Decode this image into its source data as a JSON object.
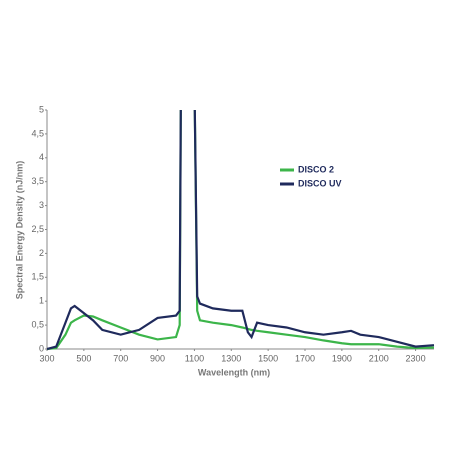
{
  "chart_data": {
    "type": "line",
    "y_label": "Spectral Energy Density (nJ/nm)",
    "x_label": "Wavelength (nm)",
    "x": [
      300,
      350,
      400,
      430,
      450,
      500,
      550,
      600,
      700,
      800,
      900,
      1000,
      1020,
      1026,
      1060,
      1102,
      1115,
      1130,
      1200,
      1300,
      1360,
      1390,
      1410,
      1440,
      1500,
      1600,
      1700,
      1800,
      1900,
      1950,
      2000,
      2100,
      2200,
      2300,
      2400
    ],
    "series": [
      {
        "name": "DISCO 2",
        "color": "#3cb54a",
        "values": [
          0,
          0.02,
          0.3,
          0.55,
          0.6,
          0.7,
          0.68,
          0.6,
          0.45,
          0.3,
          0.2,
          0.25,
          0.5,
          5,
          null,
          5,
          0.8,
          0.6,
          0.55,
          0.5,
          0.45,
          0.42,
          0.4,
          0.38,
          0.35,
          0.3,
          0.25,
          0.18,
          0.12,
          0.1,
          0.1,
          0.1,
          0.05,
          0.02,
          0.03
        ]
      },
      {
        "name": "DISCO UV",
        "color": "#1f2a5c",
        "values": [
          0,
          0.05,
          0.55,
          0.85,
          0.9,
          0.75,
          0.6,
          0.4,
          0.3,
          0.4,
          0.65,
          0.7,
          0.8,
          5,
          null,
          5,
          1.1,
          0.95,
          0.85,
          0.8,
          0.8,
          0.35,
          0.25,
          0.55,
          0.5,
          0.45,
          0.35,
          0.3,
          0.35,
          0.38,
          0.3,
          0.25,
          0.15,
          0.05,
          0.08
        ]
      }
    ],
    "xlim": [
      300,
      2400
    ],
    "ylim": [
      0,
      5
    ],
    "xticks": [
      300,
      500,
      700,
      900,
      1100,
      1300,
      1500,
      1700,
      1900,
      2100,
      2300
    ],
    "yticks": [
      0,
      {
        "value": 0.5,
        "label": "0,5"
      },
      1,
      {
        "value": 1.5,
        "label": "1,5"
      },
      2,
      {
        "value": 2.5,
        "label": "2,5"
      },
      3,
      {
        "value": 3.5,
        "label": "3,5"
      },
      4,
      {
        "value": 4.5,
        "label": "4,5"
      },
      5
    ]
  }
}
